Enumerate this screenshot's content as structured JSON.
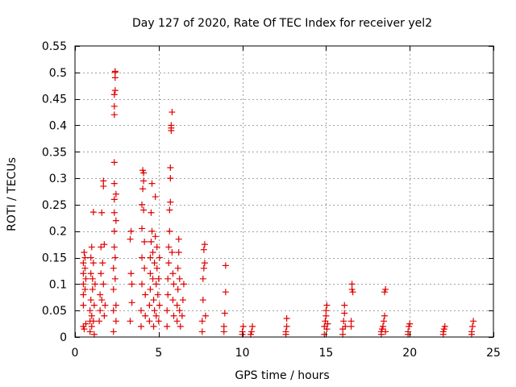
{
  "chart_data": {
    "type": "scatter",
    "title": "Day 127 of 2020, Rate Of TEC Index for receiver yel2",
    "xlabel": "GPS time / hours",
    "ylabel": "ROTI / TECUs",
    "xlim": [
      0,
      25
    ],
    "ylim": [
      0,
      0.55
    ],
    "xticks": [
      0,
      5,
      10,
      15,
      20,
      25
    ],
    "yticks": [
      0,
      0.05,
      0.1,
      0.15,
      0.2,
      0.25,
      0.3,
      0.35,
      0.4,
      0.45,
      0.5,
      0.55
    ],
    "xtick_labels": [
      "0",
      "5",
      "10",
      "15",
      "20",
      "25"
    ],
    "ytick_labels": [
      "0",
      "0.05",
      "0.1",
      "0.15",
      "0.2",
      "0.25",
      "0.3",
      "0.35",
      "0.4",
      "0.45",
      "0.5",
      "0.55"
    ],
    "grid": true,
    "marker": "+",
    "color": "#e00000",
    "series": [
      {
        "name": "ROTI",
        "points": [
          [
            0.5,
            0.02
          ],
          [
            0.5,
            0.06
          ],
          [
            0.5,
            0.08
          ],
          [
            0.5,
            0.1
          ],
          [
            0.5,
            0.12
          ],
          [
            0.5,
            0.14
          ],
          [
            0.55,
            0.16
          ],
          [
            0.55,
            0.015
          ],
          [
            0.6,
            0.09
          ],
          [
            0.6,
            0.13
          ],
          [
            0.6,
            0.15
          ],
          [
            0.65,
            0.11
          ],
          [
            0.65,
            0.025
          ],
          [
            0.9,
            0.01
          ],
          [
            0.9,
            0.03
          ],
          [
            0.9,
            0.05
          ],
          [
            0.95,
            0.07
          ],
          [
            0.95,
            0.12
          ],
          [
            0.95,
            0.15
          ],
          [
            1.0,
            0.17
          ],
          [
            1.0,
            0.02
          ],
          [
            1.0,
            0.04
          ],
          [
            1.05,
            0.09
          ],
          [
            1.05,
            0.11
          ],
          [
            1.1,
            0.14
          ],
          [
            1.1,
            0.236
          ],
          [
            1.1,
            0.03
          ],
          [
            1.15,
            0.06
          ],
          [
            1.15,
            0.005
          ],
          [
            1.2,
            0.1
          ],
          [
            1.45,
            0.03
          ],
          [
            1.5,
            0.05
          ],
          [
            1.5,
            0.08
          ],
          [
            1.55,
            0.12
          ],
          [
            1.55,
            0.17
          ],
          [
            1.6,
            0.235
          ],
          [
            1.6,
            0.07
          ],
          [
            1.65,
            0.14
          ],
          [
            1.7,
            0.285
          ],
          [
            1.7,
            0.295
          ],
          [
            1.7,
            0.1
          ],
          [
            1.75,
            0.175
          ],
          [
            1.75,
            0.04
          ],
          [
            1.8,
            0.06
          ],
          [
            2.3,
            0.01
          ],
          [
            2.3,
            0.05
          ],
          [
            2.3,
            0.09
          ],
          [
            2.3,
            0.13
          ],
          [
            2.35,
            0.17
          ],
          [
            2.35,
            0.2
          ],
          [
            2.35,
            0.235
          ],
          [
            2.35,
            0.26
          ],
          [
            2.35,
            0.29
          ],
          [
            2.35,
            0.33
          ],
          [
            2.35,
            0.42
          ],
          [
            2.35,
            0.436
          ],
          [
            2.35,
            0.458
          ],
          [
            2.4,
            0.466
          ],
          [
            2.4,
            0.49
          ],
          [
            2.4,
            0.5
          ],
          [
            2.4,
            0.502
          ],
          [
            2.4,
            0.11
          ],
          [
            2.4,
            0.15
          ],
          [
            2.45,
            0.27
          ],
          [
            2.45,
            0.22
          ],
          [
            2.45,
            0.06
          ],
          [
            2.45,
            0.03
          ],
          [
            3.3,
            0.03
          ],
          [
            3.3,
            0.185
          ],
          [
            3.35,
            0.2
          ],
          [
            3.35,
            0.12
          ],
          [
            3.4,
            0.1
          ],
          [
            3.4,
            0.065
          ],
          [
            3.95,
            0.02
          ],
          [
            3.95,
            0.05
          ],
          [
            4.0,
            0.1
          ],
          [
            4.0,
            0.15
          ],
          [
            4.0,
            0.205
          ],
          [
            4.0,
            0.25
          ],
          [
            4.05,
            0.28
          ],
          [
            4.05,
            0.315
          ],
          [
            4.1,
            0.31
          ],
          [
            4.1,
            0.295
          ],
          [
            4.1,
            0.24
          ],
          [
            4.15,
            0.18
          ],
          [
            4.15,
            0.13
          ],
          [
            4.2,
            0.08
          ],
          [
            4.2,
            0.04
          ],
          [
            4.45,
            0.03
          ],
          [
            4.45,
            0.06
          ],
          [
            4.5,
            0.09
          ],
          [
            4.5,
            0.12
          ],
          [
            4.5,
            0.15
          ],
          [
            4.55,
            0.18
          ],
          [
            4.55,
            0.235
          ],
          [
            4.6,
            0.29
          ],
          [
            4.6,
            0.2
          ],
          [
            4.65,
            0.16
          ],
          [
            4.65,
            0.11
          ],
          [
            4.7,
            0.07
          ],
          [
            4.7,
            0.02
          ],
          [
            4.75,
            0.05
          ],
          [
            4.75,
            0.14
          ],
          [
            4.8,
            0.19
          ],
          [
            4.8,
            0.265
          ],
          [
            4.85,
            0.1
          ],
          [
            4.85,
            0.04
          ],
          [
            4.9,
            0.13
          ],
          [
            4.9,
            0.17
          ],
          [
            4.95,
            0.08
          ],
          [
            5.0,
            0.03
          ],
          [
            5.0,
            0.11
          ],
          [
            5.05,
            0.06
          ],
          [
            5.05,
            0.15
          ],
          [
            5.5,
            0.02
          ],
          [
            5.5,
            0.05
          ],
          [
            5.55,
            0.08
          ],
          [
            5.55,
            0.11
          ],
          [
            5.6,
            0.14
          ],
          [
            5.6,
            0.17
          ],
          [
            5.65,
            0.2
          ],
          [
            5.65,
            0.24
          ],
          [
            5.7,
            0.255
          ],
          [
            5.7,
            0.3
          ],
          [
            5.7,
            0.32
          ],
          [
            5.75,
            0.39
          ],
          [
            5.75,
            0.395
          ],
          [
            5.75,
            0.4
          ],
          [
            5.8,
            0.425
          ],
          [
            5.8,
            0.16
          ],
          [
            5.85,
            0.12
          ],
          [
            5.85,
            0.07
          ],
          [
            5.9,
            0.04
          ],
          [
            5.9,
            0.1
          ],
          [
            6.1,
            0.03
          ],
          [
            6.1,
            0.06
          ],
          [
            6.15,
            0.09
          ],
          [
            6.15,
            0.13
          ],
          [
            6.2,
            0.16
          ],
          [
            6.2,
            0.185
          ],
          [
            6.25,
            0.11
          ],
          [
            6.25,
            0.05
          ],
          [
            6.3,
            0.02
          ],
          [
            6.4,
            0.04
          ],
          [
            6.45,
            0.07
          ],
          [
            6.5,
            0.1
          ],
          [
            7.6,
            0.01
          ],
          [
            7.6,
            0.03
          ],
          [
            7.65,
            0.07
          ],
          [
            7.65,
            0.11
          ],
          [
            7.7,
            0.13
          ],
          [
            7.7,
            0.165
          ],
          [
            7.75,
            0.175
          ],
          [
            7.75,
            0.14
          ],
          [
            7.8,
            0.04
          ],
          [
            8.9,
            0.01
          ],
          [
            8.9,
            0.02
          ],
          [
            8.95,
            0.045
          ],
          [
            9.0,
            0.085
          ],
          [
            9.0,
            0.135
          ],
          [
            10.0,
            0.005
          ],
          [
            10.0,
            0.01
          ],
          [
            10.05,
            0.02
          ],
          [
            10.5,
            0.005
          ],
          [
            10.55,
            0.01
          ],
          [
            10.6,
            0.02
          ],
          [
            12.6,
            0.005
          ],
          [
            12.6,
            0.01
          ],
          [
            12.65,
            0.02
          ],
          [
            12.65,
            0.035
          ],
          [
            14.9,
            0.005
          ],
          [
            14.9,
            0.02
          ],
          [
            14.95,
            0.03
          ],
          [
            15.0,
            0.04
          ],
          [
            15.0,
            0.05
          ],
          [
            15.05,
            0.06
          ],
          [
            15.05,
            0.015
          ],
          [
            15.1,
            0.025
          ],
          [
            16.0,
            0.005
          ],
          [
            16.0,
            0.015
          ],
          [
            16.05,
            0.03
          ],
          [
            16.1,
            0.045
          ],
          [
            16.1,
            0.06
          ],
          [
            16.15,
            0.02
          ],
          [
            16.5,
            0.02
          ],
          [
            16.5,
            0.03
          ],
          [
            16.55,
            0.09
          ],
          [
            16.55,
            0.1
          ],
          [
            16.6,
            0.085
          ],
          [
            18.3,
            0.005
          ],
          [
            18.3,
            0.01
          ],
          [
            18.35,
            0.015
          ],
          [
            18.4,
            0.02
          ],
          [
            18.45,
            0.03
          ],
          [
            18.5,
            0.04
          ],
          [
            18.5,
            0.085
          ],
          [
            18.55,
            0.09
          ],
          [
            18.55,
            0.01
          ],
          [
            19.9,
            0.005
          ],
          [
            19.9,
            0.01
          ],
          [
            19.95,
            0.02
          ],
          [
            20.0,
            0.025
          ],
          [
            22.0,
            0.005
          ],
          [
            22.0,
            0.01
          ],
          [
            22.05,
            0.015
          ],
          [
            22.1,
            0.02
          ],
          [
            23.7,
            0.005
          ],
          [
            23.7,
            0.01
          ],
          [
            23.75,
            0.02
          ],
          [
            23.8,
            0.03
          ]
        ]
      }
    ]
  }
}
